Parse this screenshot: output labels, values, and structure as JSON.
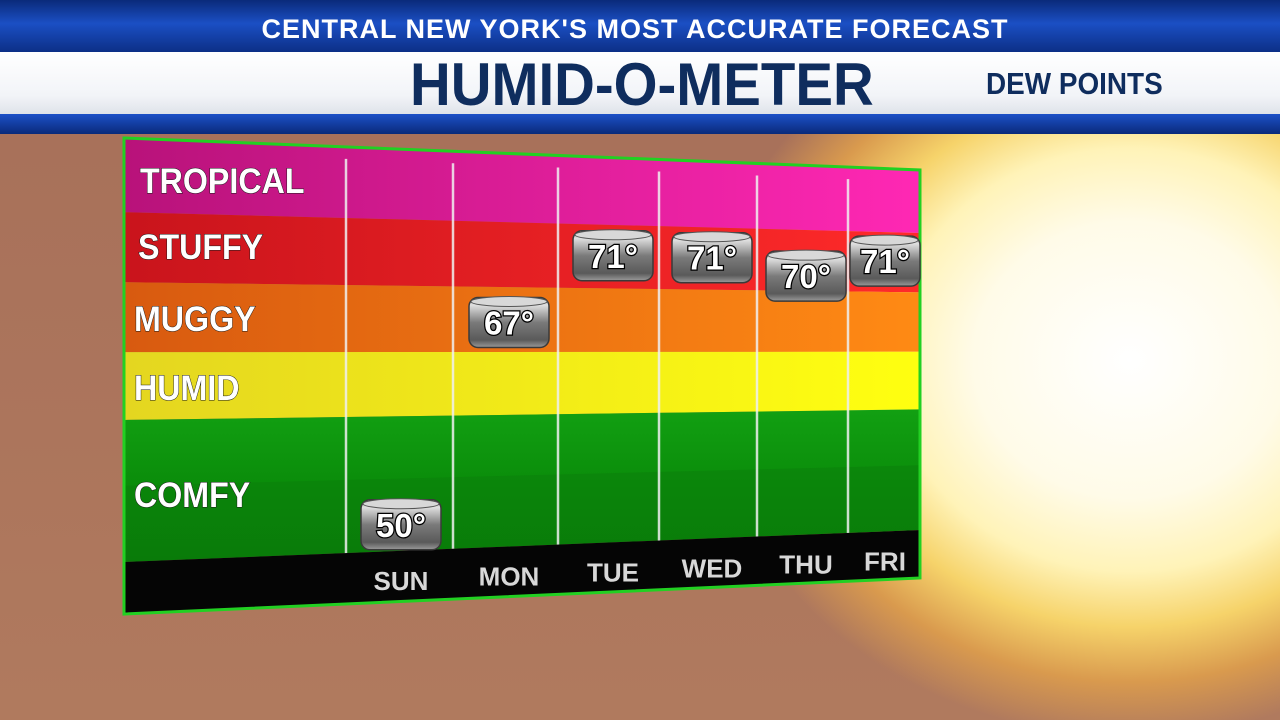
{
  "header": {
    "tagline": "CENTRAL NEW YORK'S MOST ACCURATE FORECAST",
    "title": "HUMID-O-METER",
    "subtitle": "DEW POINTS"
  },
  "chart_data": {
    "type": "bar",
    "title": "HUMID-O-METER",
    "subtitle": "DEW POINTS",
    "categories": [
      "SUN",
      "MON",
      "TUE",
      "WED",
      "THU",
      "FRI"
    ],
    "values": [
      50,
      67,
      71,
      71,
      70,
      71
    ],
    "value_labels": [
      "50°",
      "67°",
      "71°",
      "71°",
      "70°",
      "71°"
    ],
    "zones": [
      {
        "name": "TROPICAL",
        "color": "#c2137c"
      },
      {
        "name": "STUFFY",
        "color": "#d91e1e"
      },
      {
        "name": "MUGGY",
        "color": "#e2621a"
      },
      {
        "name": "HUMID",
        "color": "#ecdc1c"
      },
      {
        "name": "COMFY",
        "color": "#1fa01f"
      }
    ],
    "grid": true
  }
}
